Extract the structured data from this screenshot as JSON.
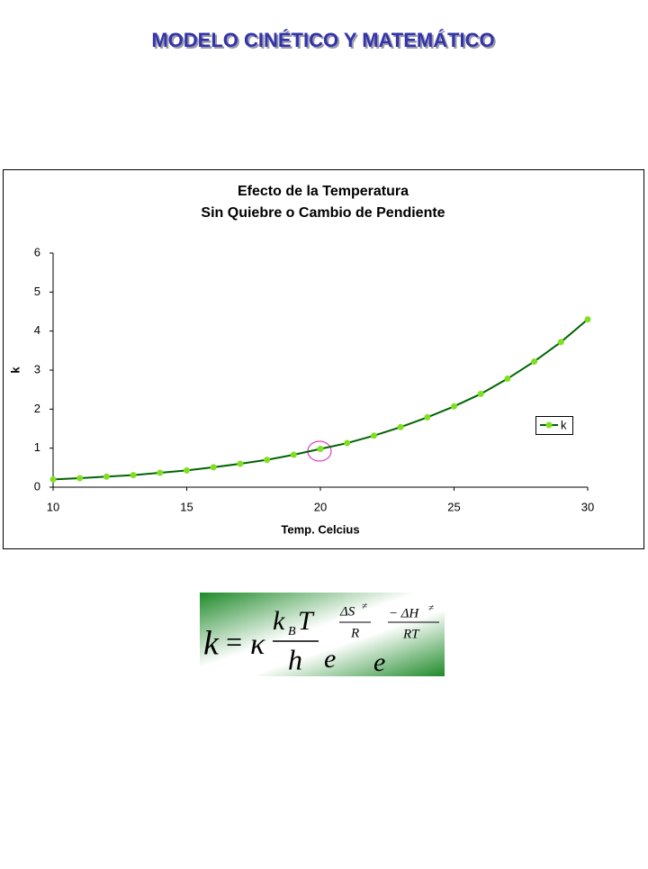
{
  "page": {
    "title": "MODELO CINÉTICO Y MATEMÁTICO"
  },
  "chart_data": {
    "type": "line",
    "title": "Efecto de la Temperatura",
    "subtitle": "Sin Quiebre o Cambio de Pendiente",
    "x_label": "Temp. Celcius",
    "y_label": "k",
    "x": [
      10,
      11,
      12,
      13,
      14,
      15,
      16,
      17,
      18,
      19,
      20,
      21,
      22,
      23,
      24,
      25,
      26,
      27,
      28,
      29,
      30
    ],
    "series": [
      {
        "name": "k",
        "color": "#006400",
        "marker_color": "#80e020",
        "values": [
          0.2,
          0.23,
          0.27,
          0.31,
          0.37,
          0.43,
          0.51,
          0.6,
          0.7,
          0.83,
          0.98,
          1.13,
          1.32,
          1.54,
          1.79,
          2.07,
          2.39,
          2.78,
          3.22,
          3.72,
          4.3
        ]
      }
    ],
    "xlim": [
      10,
      30
    ],
    "xticks": [
      10,
      15,
      20,
      25,
      30
    ],
    "ylim": [
      0,
      6
    ],
    "yticks": [
      0,
      1,
      2,
      3,
      4,
      5,
      6
    ],
    "grid": false,
    "legend": "right"
  },
  "formula": {
    "parts": [
      "k",
      "=",
      "κ",
      "k",
      "B",
      "T",
      "h",
      "e",
      "ΔS",
      "≠",
      "R",
      "e",
      "− ΔH",
      "≠",
      "RT"
    ]
  }
}
